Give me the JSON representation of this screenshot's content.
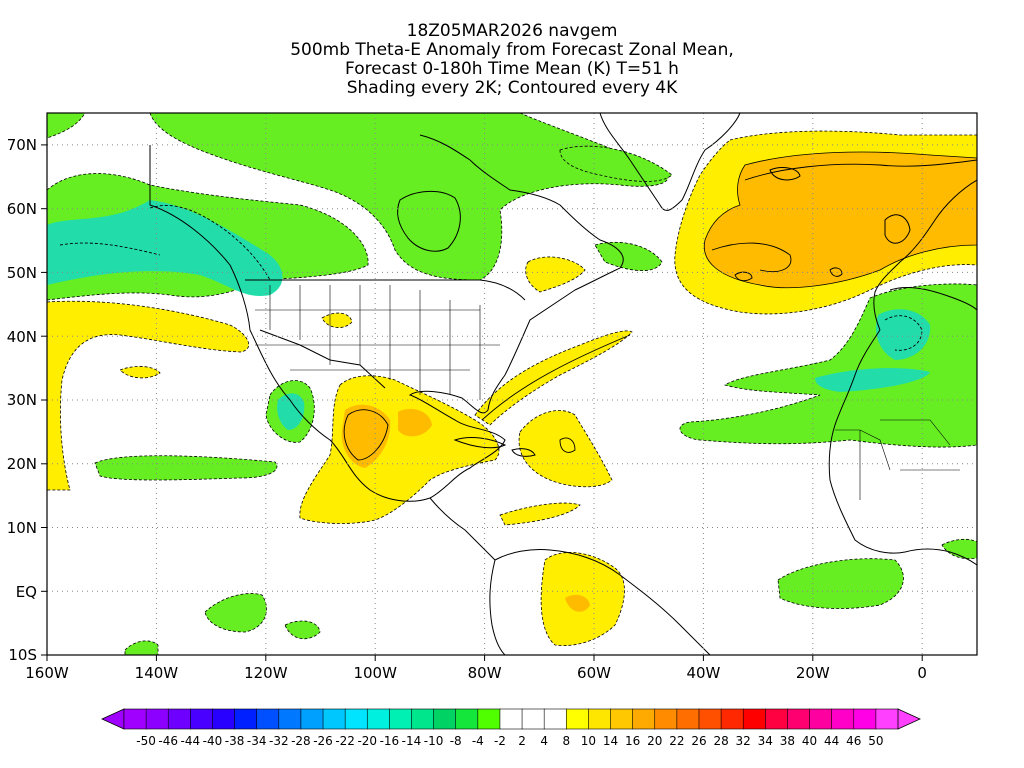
{
  "title": {
    "line1": "18Z05MAR2026 navgem",
    "line2": "500mb Theta-E Anomaly from Forecast Zonal Mean,",
    "line3": "Forecast 0-180h Time Mean (K) T=51 h",
    "line4": "Shading every 2K; Contoured every 4K"
  },
  "map": {
    "type": "filled-contour map",
    "region": "North Atlantic / Americas",
    "xlim_lon": [
      -160,
      10
    ],
    "ylim_lat": [
      -10,
      75
    ],
    "lat_ticks": [
      "70N",
      "60N",
      "50N",
      "40N",
      "30N",
      "20N",
      "10N",
      "EQ",
      "10S"
    ],
    "lon_ticks": [
      "160W",
      "140W",
      "120W",
      "100W",
      "80W",
      "60W",
      "40W",
      "20W",
      "0"
    ],
    "grid": "dotted"
  },
  "colorbar": {
    "labels": [
      "-50",
      "-46",
      "-44",
      "-40",
      "-38",
      "-34",
      "-32",
      "-28",
      "-26",
      "-22",
      "-20",
      "-16",
      "-14",
      "-10",
      "-8",
      "-4",
      "-2",
      "2",
      "4",
      "8",
      "10",
      "14",
      "16",
      "20",
      "22",
      "26",
      "28",
      "32",
      "34",
      "38",
      "40",
      "44",
      "46",
      "50"
    ],
    "colors": [
      "#a000ff",
      "#8c00ff",
      "#6e00ff",
      "#4a00ff",
      "#2800ff",
      "#0020ff",
      "#0050ff",
      "#0078ff",
      "#00a0ff",
      "#00c8ff",
      "#00e4ff",
      "#00f0e0",
      "#00f0b4",
      "#00e68c",
      "#00d264",
      "#14e63c",
      "#50ff00",
      "#ffffff",
      "#ffffff",
      "#ffffff",
      "#ffff00",
      "#ffe600",
      "#ffc800",
      "#ffaa00",
      "#ff8c00",
      "#ff6e00",
      "#ff5000",
      "#ff2800",
      "#ff0000",
      "#ff0040",
      "#ff0070",
      "#ff00a0",
      "#ff00c8",
      "#ff00e6",
      "#ff40ff"
    ]
  },
  "colors": {
    "green": "#66ee22",
    "teal": "#22ddaa",
    "yellow": "#ffee00",
    "orange": "#ffbb00",
    "coast": "#000000",
    "grid": "#888888"
  }
}
